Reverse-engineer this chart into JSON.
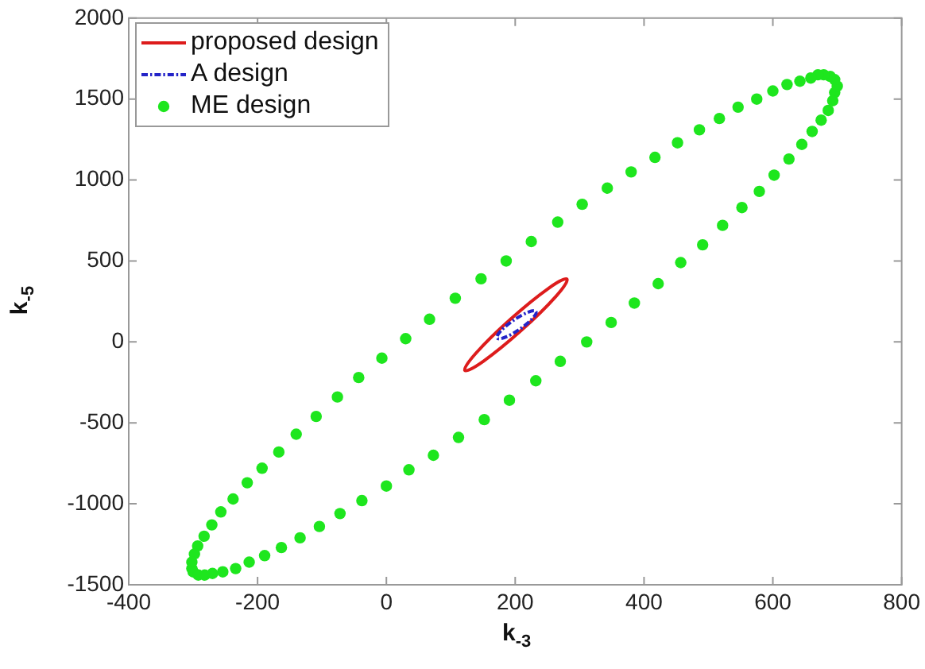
{
  "chart_data": {
    "type": "scatter",
    "xlabel": "k$_{-3}$",
    "ylabel": "k$_{-5}$",
    "xlim": [
      -400,
      800
    ],
    "xticks": [
      -400,
      -200,
      0,
      200,
      400,
      600,
      800
    ],
    "ylim": [
      -1500,
      2000
    ],
    "yticks": [
      -1500,
      -1000,
      -500,
      0,
      500,
      1000,
      1500,
      2000
    ],
    "legend": "top left",
    "annotations": [
      "proposed design",
      "A design"
    ],
    "series": [
      {
        "name": "ME design",
        "color": "#1ee61e",
        "marker": "circle",
        "x": [
          696,
          700,
          696,
          689,
          679,
          670,
          659,
          642,
          622,
          600,
          575,
          546,
          517,
          486,
          452,
          417,
          380,
          343,
          304,
          266,
          225,
          186,
          147,
          107,
          67,
          30,
          -7,
          -43,
          -76,
          -109,
          -140,
          -167,
          -193,
          -216,
          -238,
          -257,
          -271,
          -283,
          -293,
          -298,
          -302,
          -302,
          -300,
          -292,
          -282,
          -270,
          -254,
          -234,
          -213,
          -189,
          -163,
          -134,
          -104,
          -72,
          -38,
          0,
          35,
          73,
          112,
          152,
          191,
          232,
          270,
          311,
          349,
          385,
          422,
          457,
          491,
          522,
          552,
          579,
          602,
          625,
          645,
          661,
          675,
          686,
          693
        ],
        "values": [
          1540,
          1580,
          1620,
          1640,
          1650,
          1650,
          1630,
          1610,
          1590,
          1550,
          1500,
          1450,
          1380,
          1310,
          1230,
          1140,
          1050,
          950,
          850,
          740,
          620,
          500,
          390,
          270,
          140,
          20,
          -100,
          -220,
          -340,
          -460,
          -570,
          -680,
          -780,
          -870,
          -970,
          -1050,
          -1130,
          -1200,
          -1260,
          -1310,
          -1360,
          -1400,
          -1420,
          -1440,
          -1440,
          -1430,
          -1420,
          -1400,
          -1360,
          -1320,
          -1270,
          -1210,
          -1140,
          -1060,
          -980,
          -890,
          -790,
          -700,
          -590,
          -480,
          -360,
          -240,
          -120,
          0,
          120,
          240,
          360,
          490,
          600,
          720,
          830,
          930,
          1030,
          1130,
          1220,
          1300,
          1370,
          1430,
          1490
        ]
      }
    ]
  }
}
